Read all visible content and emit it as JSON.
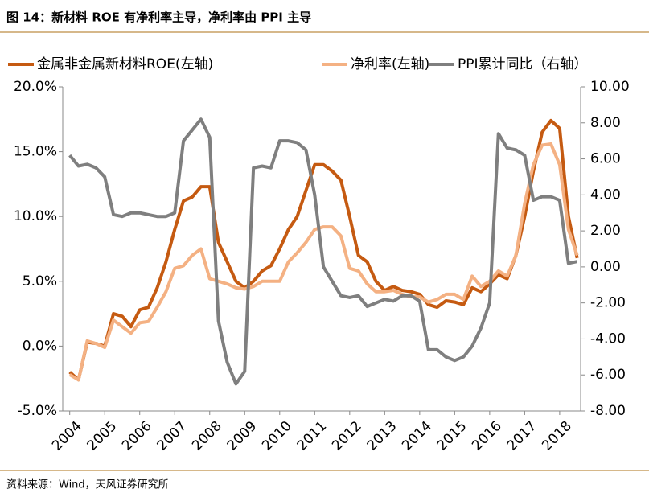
{
  "header": {
    "title": "图 14：新材料 ROE 有净利率主导，净利率由 PPI 主导"
  },
  "chart_data": {
    "type": "line",
    "x": [
      2004,
      2004.25,
      2004.5,
      2004.75,
      2005,
      2005.25,
      2005.5,
      2005.75,
      2006,
      2006.25,
      2006.5,
      2006.75,
      2007,
      2007.25,
      2007.5,
      2007.75,
      2008,
      2008.25,
      2008.5,
      2008.75,
      2009,
      2009.25,
      2009.5,
      2009.75,
      2010,
      2010.25,
      2010.5,
      2010.75,
      2011,
      2011.25,
      2011.5,
      2011.75,
      2012,
      2012.25,
      2012.5,
      2012.75,
      2013,
      2013.25,
      2013.5,
      2013.75,
      2014,
      2014.25,
      2014.5,
      2014.75,
      2015,
      2015.25,
      2015.5,
      2015.75,
      2016,
      2016.25,
      2016.5,
      2016.75,
      2017,
      2017.25,
      2017.5,
      2017.75,
      2018,
      2018.25,
      2018.5
    ],
    "series": [
      {
        "name": "金属非金属新材料ROE(左轴)",
        "color": "#C55A11",
        "values": [
          -2,
          -2.6,
          0.3,
          0.2,
          0,
          2.5,
          2.3,
          1.5,
          2.8,
          3,
          4.5,
          6.5,
          9,
          11.2,
          11.5,
          12.3,
          12.3,
          8,
          6.5,
          5,
          4.5,
          5,
          5.8,
          6.2,
          7.5,
          9,
          10,
          12,
          14,
          14,
          13.5,
          12.8,
          10,
          7,
          6.5,
          5,
          4.3,
          4.6,
          4.3,
          4.2,
          4,
          3.2,
          3,
          3.5,
          3.4,
          3.2,
          4.5,
          4.2,
          4.8,
          5.5,
          5.2,
          7,
          10,
          13.5,
          16.5,
          17.4,
          16.8,
          10,
          6.8
        ]
      },
      {
        "name": "净利率(左轴)",
        "color": "#F4B183",
        "values": [
          -2.2,
          -2.6,
          0.4,
          0.2,
          -0.1,
          2,
          1.5,
          1,
          1.8,
          1.9,
          3,
          4.2,
          6,
          6.2,
          7,
          7.5,
          5.2,
          5,
          4.8,
          4.5,
          4.4,
          4.6,
          5,
          5,
          5,
          6.5,
          7.2,
          8,
          9,
          9.2,
          9.2,
          8.5,
          6,
          5.8,
          4.8,
          4.2,
          4.2,
          4.3,
          4,
          3.8,
          3.8,
          3.4,
          3.6,
          4,
          4,
          3.6,
          5.4,
          4.6,
          5,
          5.8,
          5.4,
          7,
          11,
          14,
          15.5,
          15.6,
          14,
          9,
          7
        ]
      },
      {
        "name": "PPI累计同比（右轴）",
        "color": "#7F7F7F",
        "axis": "y2",
        "values": [
          6.2,
          5.6,
          5.7,
          5.5,
          5,
          2.9,
          2.8,
          3,
          3,
          2.9,
          2.8,
          2.8,
          3,
          7,
          7.6,
          8.2,
          7.2,
          -3,
          -5.3,
          -6.5,
          -5.8,
          5.5,
          5.6,
          5.5,
          7,
          7,
          6.9,
          6.5,
          4,
          0,
          -0.8,
          -1.6,
          -1.7,
          -1.6,
          -2.2,
          -2,
          -1.8,
          -1.9,
          -1.6,
          -1.6,
          -1.9,
          -4.6,
          -4.6,
          -5,
          -5.2,
          -5,
          -4.4,
          -3.4,
          -2,
          7.4,
          6.6,
          6.5,
          6.2,
          3.7,
          3.9,
          3.9,
          3.7,
          0.2,
          0.3
        ]
      }
    ],
    "xlim": [
      2003.8,
      2018.6
    ],
    "xticks": [
      2004,
      2005,
      2006,
      2007,
      2008,
      2009,
      2010,
      2011,
      2012,
      2013,
      2014,
      2015,
      2016,
      2017,
      2018
    ],
    "ylim": [
      -5,
      20
    ],
    "yticks": [
      {
        "value": -5,
        "label": "-5.0%"
      },
      {
        "value": 0,
        "label": "0.0%"
      },
      {
        "value": 5,
        "label": "5.0%"
      },
      {
        "value": 10,
        "label": "10.0%"
      },
      {
        "value": 15,
        "label": "15.0%"
      },
      {
        "value": 20,
        "label": "20.0%"
      }
    ],
    "y2lim": [
      -8,
      10
    ],
    "y2ticks": [
      {
        "value": -8,
        "label": "-8.00"
      },
      {
        "value": -6,
        "label": "-6.00"
      },
      {
        "value": -4,
        "label": "-4.00"
      },
      {
        "value": -2,
        "label": "-2.00"
      },
      {
        "value": 0,
        "label": "0.00"
      },
      {
        "value": 2,
        "label": "2.00"
      },
      {
        "value": 4,
        "label": "4.00"
      },
      {
        "value": 6,
        "label": "6.00"
      },
      {
        "value": 8,
        "label": "8.00"
      },
      {
        "value": 10,
        "label": "10.00"
      }
    ]
  },
  "footer": {
    "source": "资料来源：Wind，天风证券研究所"
  }
}
